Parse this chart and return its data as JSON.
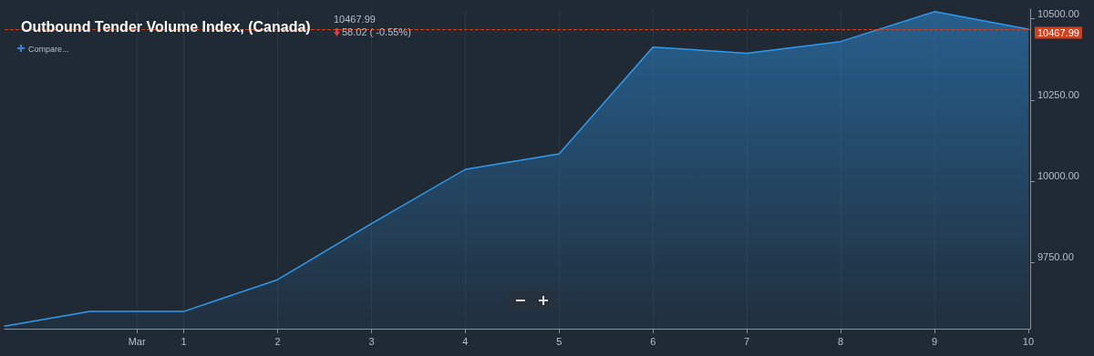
{
  "chart_data": {
    "type": "area",
    "title": "Outbound Tender Volume Index, (Canada)",
    "subtitle": "10467.99",
    "annotations": [
      "58.02 ( -0.55%)",
      "Compare..."
    ],
    "x": [
      -0.91,
      0,
      1,
      2,
      3,
      4,
      5,
      6,
      7,
      8,
      9,
      10
    ],
    "series": [
      {
        "color": "#2e9bf0",
        "values": [
          9553,
          9598,
          9598,
          9696,
          9869,
          10036,
          10084,
          10413,
          10394,
          10430,
          10522,
          10467.99
        ]
      }
    ],
    "xlim": [
      -0.91,
      10.02
    ],
    "xticks": [
      {
        "value": 0.5,
        "label": "Mar"
      },
      1,
      2,
      3,
      4,
      5,
      6,
      7,
      8,
      9,
      10
    ],
    "ylim": [
      9545,
      10530
    ],
    "yticks": [
      {
        "value": 9750,
        "label": "9750.00"
      },
      {
        "value": 10000,
        "label": "10000.00"
      },
      {
        "value": 10250,
        "label": "10250.00"
      },
      {
        "value": 10500,
        "label": "10500.00"
      }
    ],
    "ref_lines": [
      {
        "axis": "y",
        "value": 10467.99,
        "label": "10467.99",
        "color": "#d2401e",
        "line_style": "dashed"
      }
    ],
    "grid": "x",
    "marker": "none",
    "line_style": "solid"
  }
}
